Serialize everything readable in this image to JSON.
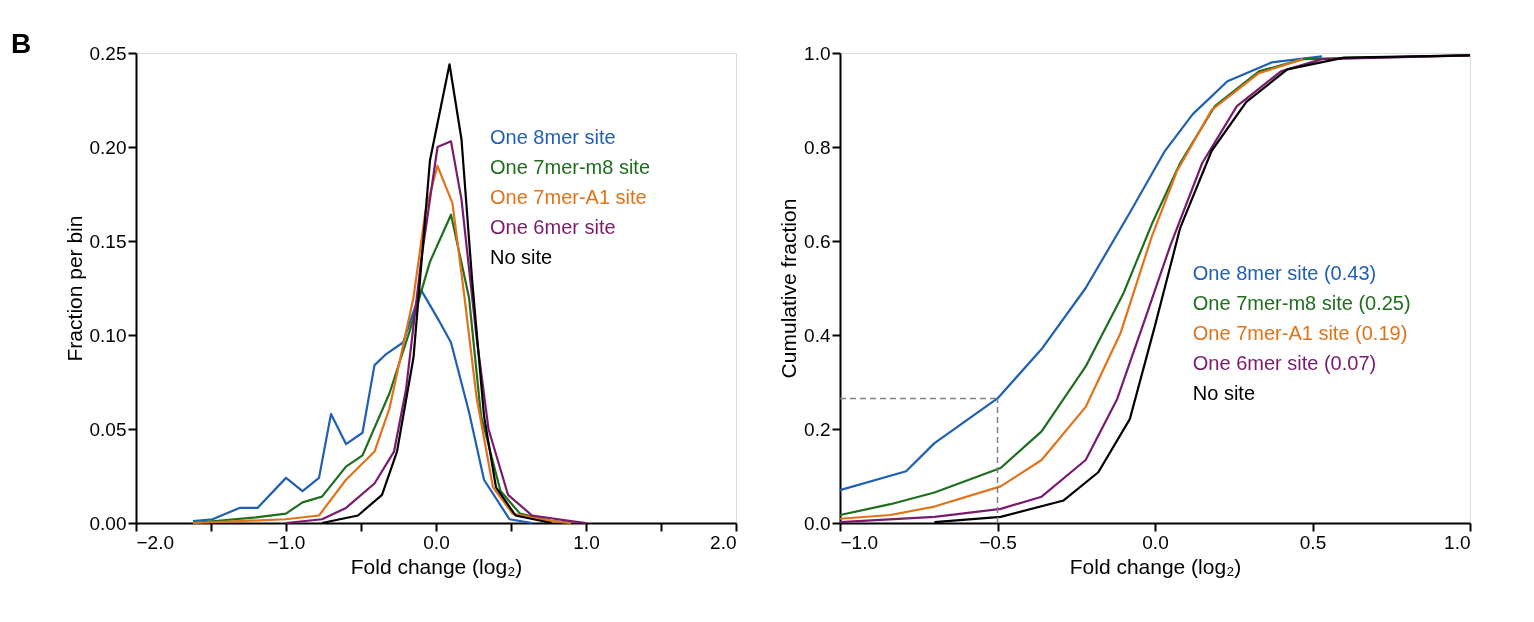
{
  "chart_data": [
    {
      "type": "line",
      "xlabel": "Fold change (log₂)",
      "ylabel": "Fraction per bin",
      "annotations": [
        "B"
      ],
      "legend": "top right",
      "grid": false,
      "line_style": "solid",
      "marker": "none",
      "xlim": [
        -2,
        2
      ],
      "xticks": [
        {
          "value": -2,
          "label": "−2.0"
        },
        {
          "value": -1.5,
          "label": null
        },
        {
          "value": -1,
          "label": "−1.0"
        },
        {
          "value": -0.5,
          "label": null
        },
        {
          "value": 0,
          "label": "0.0"
        },
        {
          "value": 0.5,
          "label": null
        },
        {
          "value": 1,
          "label": "1.0"
        },
        {
          "value": 1.5,
          "label": null
        },
        {
          "value": 2,
          "label": "2.0"
        }
      ],
      "ylim": [
        0,
        0.25
      ],
      "yticks": [
        {
          "value": 0,
          "label": "0.00"
        },
        {
          "value": 0.05,
          "label": "0.05"
        },
        {
          "value": 0.1,
          "label": "0.10"
        },
        {
          "value": 0.15,
          "label": "0.15"
        },
        {
          "value": 0.2,
          "label": "0.20"
        },
        {
          "value": 0.25,
          "label": "0.25"
        }
      ],
      "series": [
        {
          "name": "One 8mer site",
          "color": "#1f5fb4",
          "x": [
            -1.62,
            -1.49,
            -1.31,
            -1.19,
            -1.0,
            -0.89,
            -0.78,
            -0.7,
            -0.6,
            -0.49,
            -0.41,
            -0.33,
            -0.22,
            -0.1,
            0.01,
            0.1,
            0.22,
            0.32,
            0.49,
            0.64
          ],
          "values": [
            0.001,
            0.002,
            0.008,
            0.008,
            0.024,
            0.017,
            0.024,
            0.058,
            0.042,
            0.048,
            0.084,
            0.09,
            0.096,
            0.124,
            0.109,
            0.096,
            0.059,
            0.023,
            0.002,
            0.0
          ]
        },
        {
          "name": "One 7mer-m8 site",
          "color": "#1e6e1e",
          "x": [
            -1.62,
            -1.2,
            -1.0,
            -0.89,
            -0.76,
            -0.6,
            -0.49,
            -0.31,
            -0.18,
            -0.04,
            0.1,
            0.22,
            0.3,
            0.43,
            0.56,
            0.77,
            0.9
          ],
          "values": [
            0.0,
            0.003,
            0.005,
            0.011,
            0.014,
            0.03,
            0.036,
            0.069,
            0.101,
            0.139,
            0.164,
            0.12,
            0.057,
            0.017,
            0.005,
            0.001,
            0.0
          ]
        },
        {
          "name": "One 7mer-A1 site",
          "color": "#e0731a",
          "x": [
            -1.62,
            -1.0,
            -0.78,
            -0.6,
            -0.41,
            -0.31,
            -0.15,
            -0.07,
            0.01,
            0.11,
            0.19,
            0.27,
            0.38,
            0.51,
            0.77,
            0.9
          ],
          "values": [
            0.0,
            0.002,
            0.004,
            0.023,
            0.038,
            0.061,
            0.12,
            0.166,
            0.19,
            0.17,
            0.12,
            0.067,
            0.019,
            0.005,
            0.001,
            0.0
          ]
        },
        {
          "name": "One 6mer site",
          "color": "#7a1a6e",
          "x": [
            -1.0,
            -0.76,
            -0.6,
            -0.41,
            -0.28,
            -0.2,
            -0.1,
            0.01,
            0.1,
            0.17,
            0.27,
            0.35,
            0.48,
            0.64,
            0.9,
            1.0
          ],
          "values": [
            0.0,
            0.002,
            0.008,
            0.021,
            0.038,
            0.071,
            0.139,
            0.2,
            0.203,
            0.172,
            0.099,
            0.05,
            0.015,
            0.004,
            0.001,
            0.0
          ]
        },
        {
          "name": "No site",
          "color": "#000000",
          "x": [
            -0.76,
            -0.52,
            -0.36,
            -0.26,
            -0.15,
            -0.04,
            0.09,
            0.17,
            0.24,
            0.32,
            0.4,
            0.53,
            0.77
          ],
          "values": [
            0.0,
            0.004,
            0.015,
            0.038,
            0.088,
            0.193,
            0.244,
            0.204,
            0.13,
            0.057,
            0.019,
            0.004,
            0.0
          ]
        }
      ]
    },
    {
      "type": "line",
      "xlabel": "Fold change (log₂)",
      "ylabel": "Cumulative fraction",
      "legend": "bottom right",
      "grid": false,
      "line_style": "solid",
      "marker": "none",
      "xlim": [
        -1,
        1
      ],
      "xticks": [
        {
          "value": -1,
          "label": "−1.0"
        },
        {
          "value": -0.5,
          "label": "−0.5"
        },
        {
          "value": 0,
          "label": "0.0"
        },
        {
          "value": 0.5,
          "label": "0.5"
        },
        {
          "value": 1,
          "label": "1.0"
        }
      ],
      "ylim": [
        0,
        1
      ],
      "yticks": [
        {
          "value": 0,
          "label": "0.0"
        },
        {
          "value": 0.2,
          "label": "0.2"
        },
        {
          "value": 0.4,
          "label": "0.4"
        },
        {
          "value": 0.6,
          "label": "0.6"
        },
        {
          "value": 0.8,
          "label": "0.8"
        },
        {
          "value": 1,
          "label": "1.0"
        }
      ],
      "ref_lines": [
        {
          "axis": "x",
          "value": -0.5,
          "color": "#808080",
          "line_style": "dashed"
        },
        {
          "axis": "y",
          "value": 0.265,
          "color": "#808080",
          "line_style": "dashed"
        }
      ],
      "series": [
        {
          "name": "One 8mer site (0.43)",
          "color": "#1f5fb4",
          "x": [
            -1.0,
            -0.79,
            -0.7,
            -0.5,
            -0.36,
            -0.22,
            -0.08,
            0.03,
            0.12,
            0.23,
            0.37,
            0.53
          ],
          "values": [
            0.07,
            0.11,
            0.17,
            0.265,
            0.37,
            0.5,
            0.66,
            0.79,
            0.87,
            0.94,
            0.98,
            0.993
          ]
        },
        {
          "name": "One 7mer-m8 site (0.25)",
          "color": "#1e6e1e",
          "x": [
            -1.0,
            -0.84,
            -0.7,
            -0.49,
            -0.36,
            -0.22,
            -0.1,
            -0.01,
            0.08,
            0.19,
            0.33,
            0.47,
            1.0
          ],
          "values": [
            0.017,
            0.04,
            0.065,
            0.117,
            0.195,
            0.333,
            0.489,
            0.636,
            0.766,
            0.887,
            0.961,
            0.987,
            0.995
          ]
        },
        {
          "name": "One 7mer-A1 site (0.19)",
          "color": "#e0731a",
          "x": [
            -1.0,
            -0.84,
            -0.7,
            -0.49,
            -0.36,
            -0.22,
            -0.11,
            -0.01,
            0.07,
            0.18,
            0.33,
            0.47
          ],
          "values": [
            0.009,
            0.017,
            0.035,
            0.078,
            0.134,
            0.247,
            0.403,
            0.61,
            0.749,
            0.879,
            0.957,
            0.987
          ]
        },
        {
          "name": "One 6mer site (0.07)",
          "color": "#7a1a6e",
          "x": [
            -1.0,
            -0.7,
            -0.49,
            -0.36,
            -0.22,
            -0.12,
            -0.03,
            0.05,
            0.15,
            0.26,
            0.4,
            0.53,
            1.0
          ],
          "values": [
            0.002,
            0.013,
            0.03,
            0.056,
            0.134,
            0.264,
            0.437,
            0.593,
            0.766,
            0.887,
            0.961,
            0.987,
            0.995
          ]
        },
        {
          "name": "No site",
          "color": "#000000",
          "x": [
            -0.7,
            -0.49,
            -0.29,
            -0.18,
            -0.08,
            0.0,
            0.08,
            0.18,
            0.29,
            0.42,
            0.6,
            1.0
          ],
          "values": [
            0.002,
            0.013,
            0.048,
            0.108,
            0.221,
            0.42,
            0.628,
            0.792,
            0.896,
            0.965,
            0.99,
            0.995
          ]
        }
      ]
    }
  ]
}
